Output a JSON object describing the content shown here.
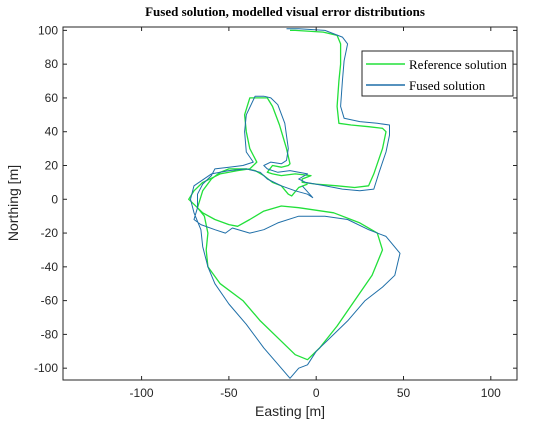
{
  "chart_data": {
    "type": "line",
    "title": "Fused solution, modelled visual error distributions",
    "xlabel": "Easting [m]",
    "ylabel": "Northing [m]",
    "xlim": [
      -145,
      115
    ],
    "ylim": [
      -107,
      102
    ],
    "xticks": [
      -100,
      -50,
      0,
      50,
      100
    ],
    "yticks": [
      -100,
      -80,
      -60,
      -40,
      -20,
      0,
      20,
      40,
      60,
      80,
      100
    ],
    "grid": false,
    "legend_position": "top-right",
    "series": [
      {
        "name": "Reference solution",
        "color": "#22e03a",
        "points": [
          [
            -15,
            100
          ],
          [
            -12,
            100
          ],
          [
            4,
            99
          ],
          [
            12,
            97
          ],
          [
            14,
            92
          ],
          [
            14,
            80
          ],
          [
            13,
            70
          ],
          [
            12,
            55
          ],
          [
            13,
            45
          ],
          [
            20,
            44
          ],
          [
            30,
            43
          ],
          [
            38,
            42
          ],
          [
            40,
            40
          ],
          [
            38,
            30
          ],
          [
            33,
            15
          ],
          [
            30,
            8
          ],
          [
            22,
            7
          ],
          [
            12,
            8
          ],
          [
            0,
            9
          ],
          [
            -8,
            10
          ],
          [
            -8,
            12
          ],
          [
            -3,
            14
          ],
          [
            -12,
            15
          ],
          [
            -20,
            14
          ],
          [
            -25,
            15
          ],
          [
            -28,
            16
          ],
          [
            -25,
            20
          ],
          [
            -20,
            19
          ],
          [
            -16,
            20
          ],
          [
            -15,
            21
          ],
          [
            -17,
            30
          ],
          [
            -21,
            44
          ],
          [
            -25,
            55
          ],
          [
            -28,
            60
          ],
          [
            -38,
            60
          ],
          [
            -41,
            50
          ],
          [
            -40,
            40
          ],
          [
            -38,
            30
          ],
          [
            -34,
            22
          ],
          [
            -38,
            18
          ],
          [
            -45,
            17
          ],
          [
            -55,
            15
          ],
          [
            -65,
            10
          ],
          [
            -70,
            5
          ],
          [
            -73,
            0
          ],
          [
            -70,
            -3
          ],
          [
            -65,
            -8
          ],
          [
            -58,
            -12
          ],
          [
            -50,
            -15
          ],
          [
            -45,
            -16
          ],
          [
            -38,
            -12
          ],
          [
            -30,
            -7
          ],
          [
            -20,
            -4
          ],
          [
            -10,
            -5
          ],
          [
            10,
            -8
          ],
          [
            25,
            -14
          ],
          [
            35,
            -20
          ],
          [
            38,
            -30
          ],
          [
            32,
            -45
          ],
          [
            22,
            -60
          ],
          [
            12,
            -75
          ],
          [
            2,
            -88
          ],
          [
            -5,
            -95
          ],
          [
            -12,
            -92
          ],
          [
            -22,
            -82
          ],
          [
            -32,
            -72
          ],
          [
            -42,
            -60
          ],
          [
            -55,
            -50
          ],
          [
            -62,
            -40
          ],
          [
            -63,
            -30
          ],
          [
            -62,
            -20
          ],
          [
            -64,
            -10
          ],
          [
            -68,
            -5
          ],
          [
            -65,
            5
          ],
          [
            -60,
            12
          ],
          [
            -55,
            16
          ],
          [
            -50,
            18
          ],
          [
            -45,
            18
          ],
          [
            -40,
            18
          ],
          [
            -35,
            17
          ],
          [
            -30,
            14
          ],
          [
            -25,
            10
          ],
          [
            -20,
            8
          ],
          [
            -16,
            3
          ],
          [
            -14,
            2
          ],
          [
            -10,
            7
          ],
          [
            -5,
            9
          ]
        ]
      },
      {
        "name": "Fused solution",
        "color": "#1f6fa8",
        "points": [
          [
            -17,
            101
          ],
          [
            -10,
            101
          ],
          [
            5,
            100
          ],
          [
            15,
            96
          ],
          [
            18,
            92
          ],
          [
            16,
            82
          ],
          [
            15,
            70
          ],
          [
            14,
            55
          ],
          [
            16,
            48
          ],
          [
            25,
            46
          ],
          [
            35,
            45
          ],
          [
            42,
            44
          ],
          [
            42,
            38
          ],
          [
            40,
            28
          ],
          [
            36,
            16
          ],
          [
            33,
            6
          ],
          [
            25,
            5
          ],
          [
            15,
            6
          ],
          [
            5,
            8
          ],
          [
            -6,
            10
          ],
          [
            -10,
            12
          ],
          [
            -5,
            15
          ],
          [
            -15,
            17
          ],
          [
            -22,
            16
          ],
          [
            -28,
            18
          ],
          [
            -30,
            20
          ],
          [
            -26,
            22
          ],
          [
            -20,
            21
          ],
          [
            -17,
            23
          ],
          [
            -16,
            30
          ],
          [
            -18,
            45
          ],
          [
            -22,
            56
          ],
          [
            -26,
            60
          ],
          [
            -30,
            61
          ],
          [
            -35,
            61
          ],
          [
            -40,
            50
          ],
          [
            -41,
            40
          ],
          [
            -40,
            28
          ],
          [
            -36,
            22
          ],
          [
            -42,
            20
          ],
          [
            -50,
            19
          ],
          [
            -58,
            18
          ],
          [
            -60,
            14
          ],
          [
            -65,
            9
          ],
          [
            -68,
            3
          ],
          [
            -68,
            -5
          ],
          [
            -70,
            -12
          ],
          [
            -66,
            -15
          ],
          [
            -58,
            -18
          ],
          [
            -52,
            -20
          ],
          [
            -48,
            -17
          ],
          [
            -38,
            -20
          ],
          [
            -30,
            -18
          ],
          [
            -22,
            -14
          ],
          [
            -10,
            -10
          ],
          [
            5,
            -10
          ],
          [
            18,
            -12
          ],
          [
            30,
            -18
          ],
          [
            40,
            -22
          ],
          [
            48,
            -32
          ],
          [
            45,
            -45
          ],
          [
            38,
            -52
          ],
          [
            28,
            -60
          ],
          [
            18,
            -72
          ],
          [
            10,
            -80
          ],
          [
            0,
            -90
          ],
          [
            -5,
            -98
          ],
          [
            -10,
            -100
          ],
          [
            -15,
            -106
          ],
          [
            -20,
            -100
          ],
          [
            -30,
            -88
          ],
          [
            -40,
            -74
          ],
          [
            -50,
            -62
          ],
          [
            -58,
            -50
          ],
          [
            -62,
            -40
          ],
          [
            -65,
            -28
          ],
          [
            -66,
            -18
          ],
          [
            -70,
            -8
          ],
          [
            -72,
            0
          ],
          [
            -70,
            8
          ],
          [
            -60,
            15
          ],
          [
            -50,
            17
          ],
          [
            -40,
            18
          ],
          [
            -32,
            16
          ],
          [
            -28,
            12
          ],
          [
            -20,
            8
          ],
          [
            -12,
            5
          ],
          [
            -5,
            3
          ],
          [
            -2,
            1
          ],
          [
            -8,
            8
          ]
        ]
      }
    ]
  }
}
